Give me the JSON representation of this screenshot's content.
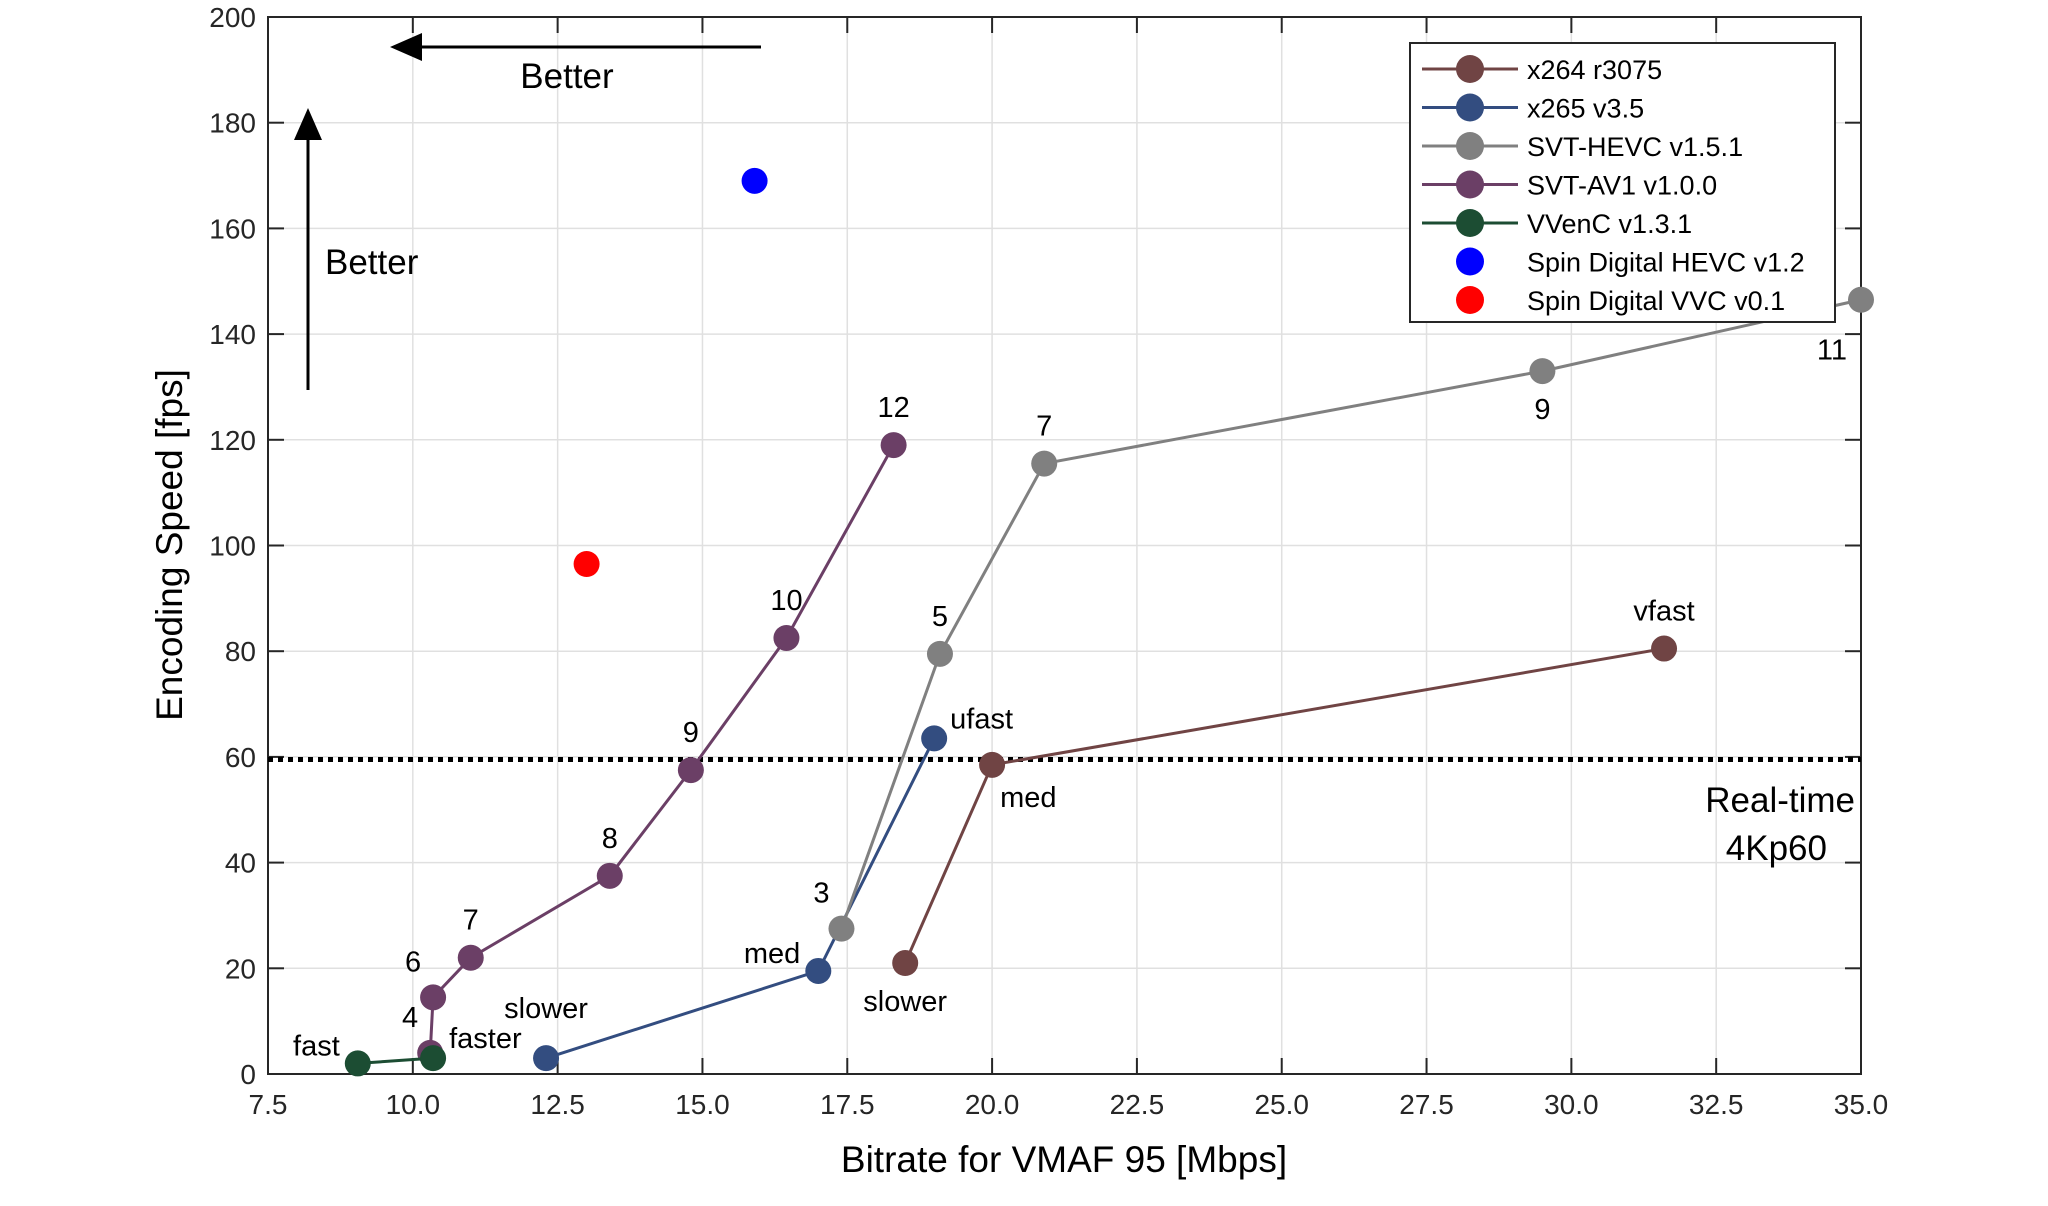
{
  "chart_data": {
    "type": "line",
    "xlabel": "Bitrate for VMAF 95 [Mbps]",
    "ylabel": "Encoding Speed [fps]",
    "xlim": [
      7.5,
      35.0
    ],
    "ylim": [
      0,
      200
    ],
    "xticks": [
      "7.5",
      "10.0",
      "12.5",
      "15.0",
      "17.5",
      "20.0",
      "22.5",
      "25.0",
      "27.5",
      "30.0",
      "32.5",
      "35.0"
    ],
    "yticks": [
      "0",
      "20",
      "40",
      "60",
      "80",
      "100",
      "120",
      "140",
      "160",
      "180",
      "200"
    ],
    "grid": true,
    "legend_position": "top-right",
    "series": [
      {
        "name": "x264 r3075",
        "color": "#704444",
        "line": true,
        "points": [
          {
            "x": 18.5,
            "y": 21,
            "label": "slower",
            "label_pos": "below"
          },
          {
            "x": 20.0,
            "y": 58.5,
            "label": "med",
            "label_pos": "below-right"
          },
          {
            "x": 31.6,
            "y": 80.5,
            "label": "vfast",
            "label_pos": "above"
          }
        ]
      },
      {
        "name": "x265 v3.5",
        "color": "#334d80",
        "line": true,
        "points": [
          {
            "x": 12.3,
            "y": 3,
            "label": "slower",
            "label_pos": "above-left"
          },
          {
            "x": 17.0,
            "y": 19.5,
            "label": "med",
            "label_pos": "left"
          },
          {
            "x": 19.0,
            "y": 63.5,
            "label": "ufast",
            "label_pos": "above-right"
          }
        ]
      },
      {
        "name": "SVT-HEVC v1.5.1",
        "color": "#808080",
        "line": true,
        "points": [
          {
            "x": 17.4,
            "y": 27.5,
            "label": "3",
            "label_pos": "above-left"
          },
          {
            "x": 19.1,
            "y": 79.5,
            "label": "5",
            "label_pos": "above"
          },
          {
            "x": 20.9,
            "y": 115.5,
            "label": "7",
            "label_pos": "above"
          },
          {
            "x": 29.5,
            "y": 133,
            "label": "9",
            "label_pos": "below"
          },
          {
            "x": 35.0,
            "y": 146.5,
            "label": "11",
            "label_pos": "below-left"
          }
        ]
      },
      {
        "name": "SVT-AV1 v1.0.0",
        "color": "#6b3f66",
        "line": true,
        "points": [
          {
            "x": 10.3,
            "y": 4,
            "label": "4",
            "label_pos": "above-left"
          },
          {
            "x": 10.35,
            "y": 14.5,
            "label": "6",
            "label_pos": "above-left"
          },
          {
            "x": 11.0,
            "y": 22,
            "label": "7",
            "label_pos": "above"
          },
          {
            "x": 13.4,
            "y": 37.5,
            "label": "8",
            "label_pos": "above"
          },
          {
            "x": 14.8,
            "y": 57.5,
            "label": "9",
            "label_pos": "above"
          },
          {
            "x": 16.45,
            "y": 82.5,
            "label": "10",
            "label_pos": "above"
          },
          {
            "x": 18.3,
            "y": 119,
            "label": "12",
            "label_pos": "above"
          }
        ]
      },
      {
        "name": "VVenC v1.3.1",
        "color": "#1c4d33",
        "line": true,
        "points": [
          {
            "x": 9.05,
            "y": 2,
            "label": "fast",
            "label_pos": "left"
          },
          {
            "x": 10.35,
            "y": 3,
            "label": "faster",
            "label_pos": "above-right"
          }
        ]
      },
      {
        "name": "Spin Digital HEVC v1.2",
        "color": "#0000ff",
        "line": false,
        "points": [
          {
            "x": 15.9,
            "y": 169,
            "label": "",
            "label_pos": ""
          }
        ]
      },
      {
        "name": "Spin Digital VVC v0.1",
        "color": "#ff0000",
        "line": false,
        "points": [
          {
            "x": 13.0,
            "y": 96.5,
            "label": "",
            "label_pos": ""
          }
        ]
      }
    ],
    "reference_line": {
      "y": 59.5,
      "style": "dotted",
      "color": "#000000",
      "label_line1": "Real-time",
      "label_line2": "4Kp60"
    },
    "annotations": {
      "better_horizontal": "Better",
      "better_vertical": "Better"
    }
  }
}
